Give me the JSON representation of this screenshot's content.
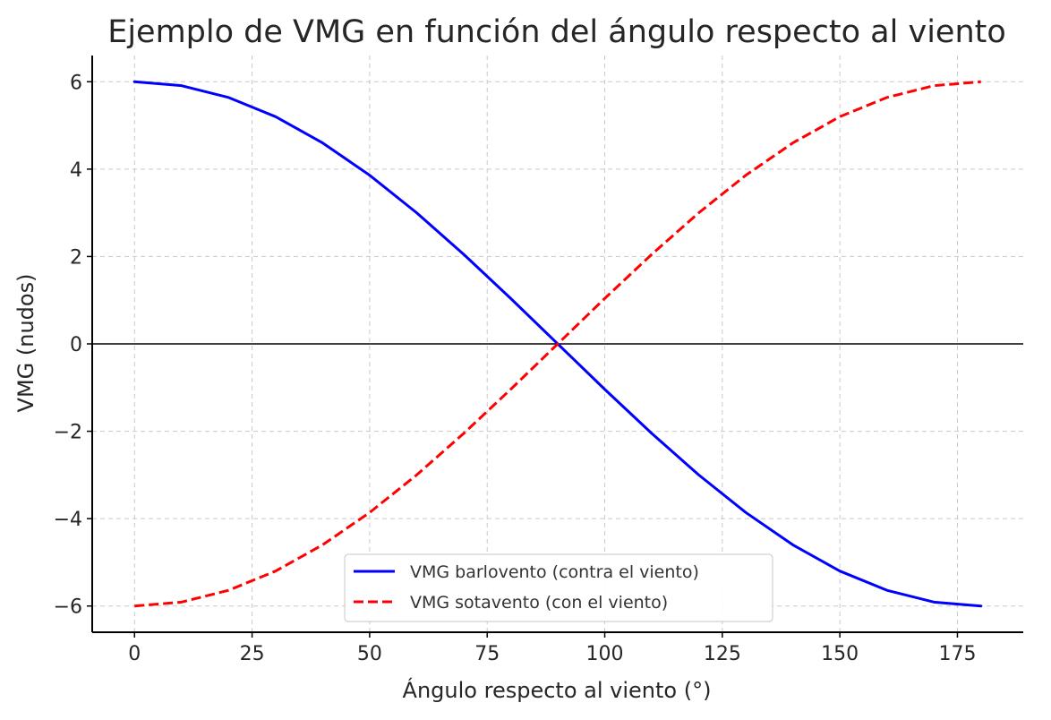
{
  "chart_data": {
    "type": "line",
    "title": "Ejemplo de VMG en función del ángulo respecto al viento",
    "xlabel": "Ángulo respecto al viento (°)",
    "ylabel": "VMG (nudos)",
    "xlim": [
      -9,
      189
    ],
    "ylim": [
      -6.6,
      6.6
    ],
    "x_ticks": [
      0,
      25,
      50,
      75,
      100,
      125,
      150,
      175
    ],
    "x_tick_labels": [
      "0",
      "25",
      "50",
      "75",
      "100",
      "125",
      "150",
      "175"
    ],
    "y_ticks": [
      -6,
      -4,
      -2,
      0,
      2,
      4,
      6
    ],
    "y_tick_labels": [
      "−6",
      "−4",
      "−2",
      "0",
      "2",
      "4",
      "6"
    ],
    "grid": true,
    "zero_line": true,
    "legend_position": "bottom-center",
    "x": [
      0,
      10,
      20,
      30,
      40,
      50,
      60,
      70,
      80,
      90,
      100,
      110,
      120,
      130,
      140,
      150,
      160,
      170,
      180
    ],
    "series": [
      {
        "name": "VMG barlovento (contra el viento)",
        "color": "#0000ff",
        "line_style": "solid",
        "values": [
          6.0,
          5.91,
          5.64,
          5.2,
          4.6,
          3.86,
          3.0,
          2.05,
          1.04,
          0.0,
          -1.04,
          -2.05,
          -3.0,
          -3.86,
          -4.6,
          -5.2,
          -5.64,
          -5.91,
          -6.0
        ]
      },
      {
        "name": "VMG sotavento (con el viento)",
        "color": "#ff0000",
        "line_style": "dashed",
        "values": [
          -6.0,
          -5.91,
          -5.64,
          -5.2,
          -4.6,
          -3.86,
          -3.0,
          -2.05,
          -1.04,
          0.0,
          1.04,
          2.05,
          3.0,
          3.86,
          4.6,
          5.2,
          5.64,
          5.91,
          6.0
        ]
      }
    ]
  }
}
